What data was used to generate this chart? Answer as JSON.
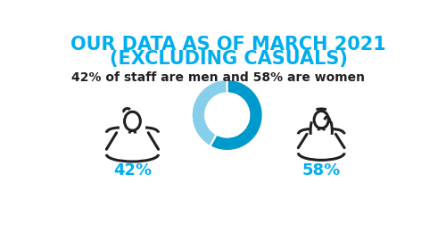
{
  "title_line1": "OUR DATA AS OF MARCH 2021",
  "title_line2": "(EXCLUDING CASUALS)",
  "subtitle": "42% of staff are men and 58% are women",
  "male_pct": 42,
  "female_pct": 58,
  "male_label": "42%",
  "female_label": "58%",
  "title_color": "#00AEEF",
  "subtitle_color": "#231F20",
  "label_color": "#00AEEF",
  "figure_color": "#231F20",
  "donut_male_color": "#87CEEB",
  "donut_female_color": "#0099CC",
  "background_color": "#FFFFFF",
  "title_fontsize": 15,
  "subtitle_fontsize": 10,
  "label_fontsize": 13
}
